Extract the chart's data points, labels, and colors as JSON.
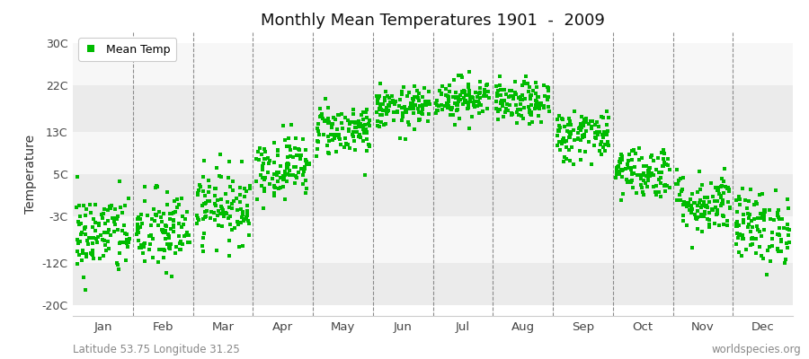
{
  "title": "Monthly Mean Temperatures 1901  -  2009",
  "ylabel": "Temperature",
  "subtitle_left": "Latitude 53.75 Longitude 31.25",
  "subtitle_right": "worldspecies.org",
  "legend_label": "Mean Temp",
  "dot_color": "#00bb00",
  "dot_size": 5,
  "background_color": "#ffffff",
  "plot_bg_color": "#ffffff",
  "band_colors_alt": [
    "#ebebeb",
    "#f7f7f7"
  ],
  "yticks": [
    -20,
    -12,
    -3,
    5,
    13,
    22,
    30
  ],
  "ytick_labels": [
    "-20C",
    "-12C",
    "-3C",
    "5C",
    "13C",
    "22C",
    "30C"
  ],
  "ylim": [
    -22,
    32
  ],
  "months": [
    "Jan",
    "Feb",
    "Mar",
    "Apr",
    "May",
    "Jun",
    "Jul",
    "Aug",
    "Sep",
    "Oct",
    "Nov",
    "Dec"
  ],
  "month_means": [
    -6.5,
    -6.0,
    -1.0,
    6.5,
    13.5,
    17.5,
    19.5,
    18.5,
    12.5,
    5.5,
    -0.5,
    -5.0
  ],
  "month_stds": [
    4.0,
    4.0,
    3.5,
    3.0,
    2.5,
    2.0,
    2.0,
    2.0,
    2.5,
    2.5,
    3.0,
    3.5
  ],
  "n_years": 109,
  "seed": 42
}
